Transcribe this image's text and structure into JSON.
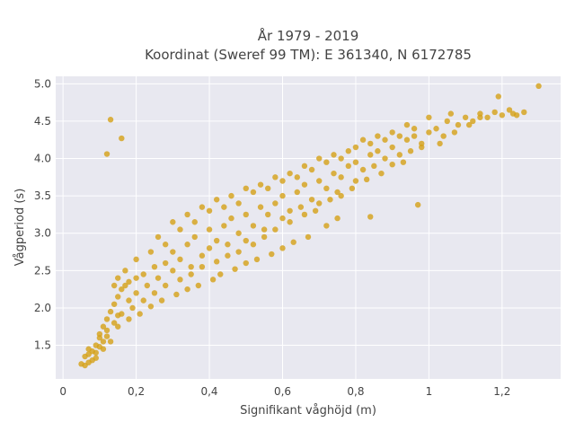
{
  "chart_data": {
    "type": "scatter",
    "title": [
      "År 1979 - 2019",
      "Koordinat (Sweref 99 TM): E 361340, N 6172785"
    ],
    "xlabel": "Signifikant våghöjd (m)",
    "ylabel": "Vågperiod (s)",
    "xlim": [
      -0.02,
      1.36
    ],
    "ylim": [
      1.05,
      5.1
    ],
    "xticks": [
      0,
      0.2,
      0.4,
      0.6,
      0.8,
      1,
      1.2
    ],
    "xtick_labels": [
      "0",
      "0,2",
      "0,4",
      "0,6",
      "0,8",
      "1",
      "1,2"
    ],
    "yticks": [
      1.5,
      2.0,
      2.5,
      3.0,
      3.5,
      4.0,
      4.5,
      5.0
    ],
    "ytick_labels": [
      "1.5",
      "2.0",
      "2.5",
      "3.0",
      "3.5",
      "4.0",
      "4.5",
      "5.0"
    ],
    "grid": true,
    "marker_color": "#D4A017",
    "background_color": "#E8E8F0",
    "points": [
      [
        0.05,
        1.25
      ],
      [
        0.06,
        1.23
      ],
      [
        0.07,
        1.27
      ],
      [
        0.06,
        1.35
      ],
      [
        0.07,
        1.45
      ],
      [
        0.08,
        1.42
      ],
      [
        0.08,
        1.3
      ],
      [
        0.09,
        1.5
      ],
      [
        0.1,
        1.48
      ],
      [
        0.11,
        1.55
      ],
      [
        0.1,
        1.65
      ],
      [
        0.11,
        1.75
      ],
      [
        0.12,
        1.62
      ],
      [
        0.12,
        1.85
      ],
      [
        0.13,
        1.95
      ],
      [
        0.14,
        2.05
      ],
      [
        0.15,
        2.15
      ],
      [
        0.15,
        1.9
      ],
      [
        0.16,
        2.25
      ],
      [
        0.17,
        2.3
      ],
      [
        0.18,
        2.35
      ],
      [
        0.18,
        2.1
      ],
      [
        0.2,
        2.4
      ],
      [
        0.2,
        2.2
      ],
      [
        0.22,
        2.45
      ],
      [
        0.23,
        2.3
      ],
      [
        0.25,
        2.55
      ],
      [
        0.26,
        2.4
      ],
      [
        0.28,
        2.6
      ],
      [
        0.3,
        2.5
      ],
      [
        0.3,
        2.75
      ],
      [
        0.32,
        2.65
      ],
      [
        0.34,
        2.85
      ],
      [
        0.35,
        2.55
      ],
      [
        0.36,
        2.95
      ],
      [
        0.38,
        2.7
      ],
      [
        0.4,
        3.05
      ],
      [
        0.4,
        2.8
      ],
      [
        0.42,
        2.9
      ],
      [
        0.44,
        3.1
      ],
      [
        0.45,
        2.85
      ],
      [
        0.46,
        3.2
      ],
      [
        0.48,
        3.0
      ],
      [
        0.5,
        3.25
      ],
      [
        0.5,
        2.9
      ],
      [
        0.52,
        3.1
      ],
      [
        0.54,
        3.35
      ],
      [
        0.55,
        3.05
      ],
      [
        0.56,
        3.25
      ],
      [
        0.58,
        3.4
      ],
      [
        0.6,
        3.2
      ],
      [
        0.6,
        3.5
      ],
      [
        0.62,
        3.3
      ],
      [
        0.64,
        3.55
      ],
      [
        0.65,
        3.35
      ],
      [
        0.66,
        3.65
      ],
      [
        0.68,
        3.45
      ],
      [
        0.7,
        3.7
      ],
      [
        0.7,
        3.4
      ],
      [
        0.72,
        3.6
      ],
      [
        0.74,
        3.8
      ],
      [
        0.75,
        3.55
      ],
      [
        0.76,
        3.75
      ],
      [
        0.78,
        3.9
      ],
      [
        0.8,
        3.7
      ],
      [
        0.8,
        3.95
      ],
      [
        0.82,
        3.85
      ],
      [
        0.84,
        4.05
      ],
      [
        0.85,
        3.9
      ],
      [
        0.86,
        4.1
      ],
      [
        0.88,
        4.0
      ],
      [
        0.9,
        4.15
      ],
      [
        0.92,
        4.05
      ],
      [
        0.94,
        4.25
      ],
      [
        0.95,
        4.1
      ],
      [
        0.96,
        4.3
      ],
      [
        0.98,
        4.2
      ],
      [
        1.0,
        4.35
      ],
      [
        1.02,
        4.4
      ],
      [
        1.04,
        4.3
      ],
      [
        1.05,
        4.5
      ],
      [
        1.08,
        4.45
      ],
      [
        1.1,
        4.55
      ],
      [
        1.12,
        4.5
      ],
      [
        1.14,
        4.6
      ],
      [
        1.16,
        4.55
      ],
      [
        1.18,
        4.62
      ],
      [
        1.2,
        4.58
      ],
      [
        1.22,
        4.65
      ],
      [
        1.23,
        4.6
      ],
      [
        1.3,
        4.97
      ],
      [
        1.19,
        4.83
      ],
      [
        1.11,
        4.45
      ],
      [
        1.07,
        4.35
      ],
      [
        1.03,
        4.2
      ],
      [
        0.98,
        4.15
      ],
      [
        0.93,
        3.95
      ],
      [
        0.9,
        3.92
      ],
      [
        0.87,
        3.8
      ],
      [
        0.83,
        3.72
      ],
      [
        0.79,
        3.6
      ],
      [
        0.76,
        3.5
      ],
      [
        0.73,
        3.45
      ],
      [
        0.69,
        3.3
      ],
      [
        0.66,
        3.25
      ],
      [
        0.62,
        3.15
      ],
      [
        0.58,
        3.05
      ],
      [
        0.55,
        2.95
      ],
      [
        0.52,
        2.85
      ],
      [
        0.48,
        2.75
      ],
      [
        0.45,
        2.7
      ],
      [
        0.42,
        2.62
      ],
      [
        0.38,
        2.55
      ],
      [
        0.35,
        2.45
      ],
      [
        0.32,
        2.38
      ],
      [
        0.28,
        2.3
      ],
      [
        0.25,
        2.2
      ],
      [
        0.22,
        2.1
      ],
      [
        0.19,
        2.0
      ],
      [
        0.16,
        1.92
      ],
      [
        0.14,
        1.8
      ],
      [
        0.12,
        1.7
      ],
      [
        0.1,
        1.6
      ],
      [
        0.09,
        1.4
      ],
      [
        0.07,
        1.38
      ],
      [
        0.13,
        4.52
      ],
      [
        0.16,
        4.27
      ],
      [
        0.12,
        4.06
      ],
      [
        0.97,
        3.38
      ],
      [
        0.84,
        3.22
      ],
      [
        0.75,
        3.2
      ],
      [
        0.72,
        3.1
      ],
      [
        0.67,
        2.95
      ],
      [
        0.63,
        2.88
      ],
      [
        0.6,
        2.8
      ],
      [
        0.57,
        2.72
      ],
      [
        0.53,
        2.65
      ],
      [
        0.5,
        2.6
      ],
      [
        0.47,
        2.52
      ],
      [
        0.43,
        2.45
      ],
      [
        0.41,
        2.38
      ],
      [
        0.37,
        2.3
      ],
      [
        0.34,
        2.25
      ],
      [
        0.31,
        2.18
      ],
      [
        0.27,
        2.1
      ],
      [
        0.24,
        2.02
      ],
      [
        0.21,
        1.92
      ],
      [
        0.18,
        1.85
      ],
      [
        0.15,
        1.75
      ],
      [
        0.13,
        1.55
      ],
      [
        0.11,
        1.45
      ],
      [
        0.09,
        1.33
      ],
      [
        0.28,
        2.85
      ],
      [
        0.32,
        3.05
      ],
      [
        0.36,
        3.15
      ],
      [
        0.4,
        3.3
      ],
      [
        0.44,
        3.35
      ],
      [
        0.48,
        3.4
      ],
      [
        0.52,
        3.55
      ],
      [
        0.56,
        3.6
      ],
      [
        0.6,
        3.7
      ],
      [
        0.64,
        3.75
      ],
      [
        0.68,
        3.85
      ],
      [
        0.72,
        3.95
      ],
      [
        0.76,
        4.0
      ],
      [
        0.8,
        4.15
      ],
      [
        0.84,
        4.2
      ],
      [
        0.88,
        4.25
      ],
      [
        0.92,
        4.3
      ],
      [
        0.96,
        4.4
      ],
      [
        1.0,
        4.55
      ],
      [
        0.24,
        2.75
      ],
      [
        0.2,
        2.65
      ],
      [
        0.17,
        2.5
      ],
      [
        0.15,
        2.4
      ],
      [
        0.14,
        2.3
      ],
      [
        0.26,
        2.95
      ],
      [
        0.3,
        3.15
      ],
      [
        0.34,
        3.25
      ],
      [
        0.38,
        3.35
      ],
      [
        0.42,
        3.45
      ],
      [
        0.46,
        3.5
      ],
      [
        0.5,
        3.6
      ],
      [
        0.54,
        3.65
      ],
      [
        0.58,
        3.75
      ],
      [
        0.62,
        3.8
      ],
      [
        0.66,
        3.9
      ],
      [
        0.7,
        4.0
      ],
      [
        0.74,
        4.05
      ],
      [
        0.78,
        4.1
      ],
      [
        0.82,
        4.25
      ],
      [
        0.86,
        4.3
      ],
      [
        0.9,
        4.35
      ],
      [
        0.94,
        4.45
      ],
      [
        1.06,
        4.6
      ],
      [
        1.14,
        4.55
      ],
      [
        1.26,
        4.62
      ],
      [
        1.24,
        4.58
      ]
    ]
  }
}
